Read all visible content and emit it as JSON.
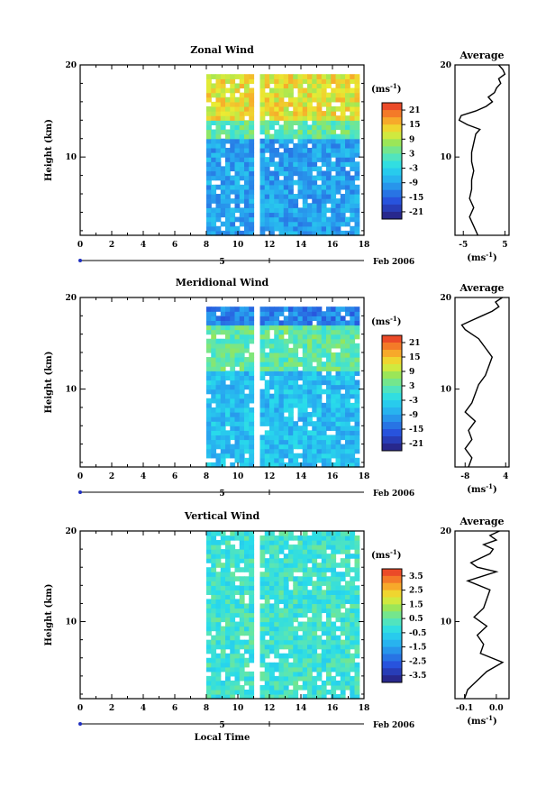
{
  "chart_data": [
    {
      "type": "heatmap",
      "title": "Zonal Wind",
      "ylabel": "Height (km)",
      "x_ticks": [
        "0",
        "2",
        "4",
        "6",
        "8",
        "10",
        "12",
        "14",
        "16",
        "18"
      ],
      "y_ticks": [
        "10",
        "20"
      ],
      "xlim": [
        0,
        18
      ],
      "ylim": [
        1.5,
        20
      ],
      "date_axis": {
        "day_label": "5",
        "month_year": "Feb 2006"
      },
      "data_coverage": [
        [
          8,
          11
        ],
        [
          11.4,
          17.6
        ]
      ],
      "colorbar": {
        "unit": "(ms",
        "unit_exp": "-1",
        "unit_close": ")",
        "ticks": [
          "21",
          "15",
          "9",
          "3",
          "-3",
          "-9",
          "-15",
          "-21"
        ],
        "tick_values": [
          21,
          15,
          9,
          3,
          -3,
          -9,
          -15,
          -21
        ],
        "range": [
          -24,
          24
        ]
      },
      "field_description": [
        {
          "height": [
            1.5,
            12
          ],
          "value": -9
        },
        {
          "height": [
            12,
            14
          ],
          "value": 3
        },
        {
          "height": [
            14,
            19
          ],
          "value": 12
        }
      ],
      "average_profile": {
        "title": "Average",
        "x_ticks": [
          "-5",
          "5"
        ],
        "x_range": [
          -7,
          6
        ],
        "xlabel": "(ms",
        "xlabel_exp": "-1",
        "xlabel_close": ")",
        "y_ticks": [
          "10",
          "20"
        ],
        "heights": [
          1.5,
          2.5,
          3.5,
          4.5,
          5.5,
          6.5,
          7.5,
          8.5,
          9.5,
          10.5,
          11.5,
          12.5,
          13,
          13.5,
          14,
          14.5,
          15,
          15.5,
          16,
          16.5,
          17,
          17.5,
          18,
          18.5,
          19,
          19.5,
          20
        ],
        "values": [
          -1.5,
          -2.5,
          -3.5,
          -2.5,
          -3.5,
          -3,
          -3,
          -2.5,
          -3,
          -3,
          -2.5,
          -2,
          -1,
          -4,
          -6,
          -5.5,
          -2,
          0.5,
          2,
          1,
          2.5,
          3,
          4,
          3.5,
          5,
          4.5,
          3.5
        ]
      }
    },
    {
      "type": "heatmap",
      "title": "Meridional Wind",
      "ylabel": "Height (km)",
      "x_ticks": [
        "0",
        "2",
        "4",
        "6",
        "8",
        "10",
        "12",
        "14",
        "16",
        "18"
      ],
      "y_ticks": [
        "10",
        "20"
      ],
      "xlim": [
        0,
        18
      ],
      "ylim": [
        1.5,
        20
      ],
      "date_axis": {
        "day_label": "5",
        "month_year": "Feb 2006"
      },
      "data_coverage": [
        [
          8,
          11
        ],
        [
          11.4,
          17.6
        ]
      ],
      "colorbar": {
        "unit": "(ms",
        "unit_exp": "-1",
        "unit_close": ")",
        "ticks": [
          "21",
          "15",
          "9",
          "3",
          "-3",
          "-9",
          "-15",
          "-21"
        ],
        "tick_values": [
          21,
          15,
          9,
          3,
          -3,
          -9,
          -15,
          -21
        ],
        "range": [
          -24,
          24
        ]
      },
      "field_description": [
        {
          "height": [
            1.5,
            12
          ],
          "value": -6
        },
        {
          "height": [
            12,
            17
          ],
          "value": 3
        },
        {
          "height": [
            17,
            19
          ],
          "value": -12
        }
      ],
      "average_profile": {
        "title": "Average",
        "x_ticks": [
          "-8",
          "4"
        ],
        "x_range": [
          -11,
          5
        ],
        "xlabel": "(ms",
        "xlabel_exp": "-1",
        "xlabel_close": ")",
        "y_ticks": [
          "10",
          "20"
        ],
        "heights": [
          1.5,
          2.5,
          3.5,
          4.5,
          5.5,
          6.5,
          7.5,
          8.5,
          9.5,
          10.5,
          11.5,
          12.5,
          13.5,
          14,
          14.5,
          15,
          15.5,
          16,
          16.5,
          17,
          17.5,
          18,
          18.5,
          19,
          19.5,
          20
        ],
        "values": [
          -7,
          -6,
          -8,
          -6,
          -7,
          -5,
          -8,
          -6,
          -5,
          -4,
          -2,
          -1,
          0,
          -1,
          -2,
          -3,
          -4,
          -6,
          -8,
          -9,
          -6,
          -3,
          0,
          2,
          1,
          3
        ]
      }
    },
    {
      "type": "heatmap",
      "title": "Vertical Wind",
      "ylabel": "Height (km)",
      "xlabel": "Local Time",
      "x_ticks": [
        "0",
        "2",
        "4",
        "6",
        "8",
        "10",
        "12",
        "14",
        "16",
        "18"
      ],
      "y_ticks": [
        "10",
        "20"
      ],
      "xlim": [
        0,
        18
      ],
      "ylim": [
        1.5,
        20
      ],
      "date_axis": {
        "day_label": "5",
        "month_year": "Feb 2006"
      },
      "data_coverage": [
        [
          8,
          11
        ],
        [
          11.4,
          17.6
        ]
      ],
      "colorbar": {
        "unit": "(ms",
        "unit_exp": "-1",
        "unit_close": ")",
        "ticks": [
          "3.5",
          "2.5",
          "1.5",
          "0.5",
          "-0.5",
          "-1.5",
          "-2.5",
          "-3.5"
        ],
        "tick_values": [
          3.5,
          2.5,
          1.5,
          0.5,
          -0.5,
          -1.5,
          -2.5,
          -3.5
        ],
        "range": [
          -4,
          4
        ]
      },
      "field_description": [
        {
          "height": [
            1.5,
            20
          ],
          "value": 0
        }
      ],
      "average_profile": {
        "title": "Average",
        "x_ticks": [
          "-0.1",
          "0.0"
        ],
        "x_range": [
          -0.13,
          0.04
        ],
        "xlabel": "(ms",
        "xlabel_exp": "-1",
        "xlabel_close": ")",
        "y_ticks": [
          "10",
          "20"
        ],
        "heights": [
          1.5,
          2.5,
          3.5,
          4.5,
          5.5,
          6.5,
          7.5,
          8.5,
          9.5,
          10.5,
          11.5,
          12.5,
          13.5,
          14.5,
          15.5,
          16,
          16.5,
          17,
          17.5,
          18,
          18.5,
          19,
          19.5,
          20
        ],
        "values": [
          -0.1,
          -0.09,
          -0.06,
          -0.03,
          0.02,
          -0.05,
          -0.04,
          -0.06,
          -0.03,
          -0.07,
          -0.04,
          -0.03,
          -0.02,
          -0.09,
          0.0,
          -0.06,
          -0.08,
          -0.05,
          -0.02,
          -0.01,
          -0.04,
          0.0,
          -0.02,
          0.01
        ]
      }
    }
  ]
}
